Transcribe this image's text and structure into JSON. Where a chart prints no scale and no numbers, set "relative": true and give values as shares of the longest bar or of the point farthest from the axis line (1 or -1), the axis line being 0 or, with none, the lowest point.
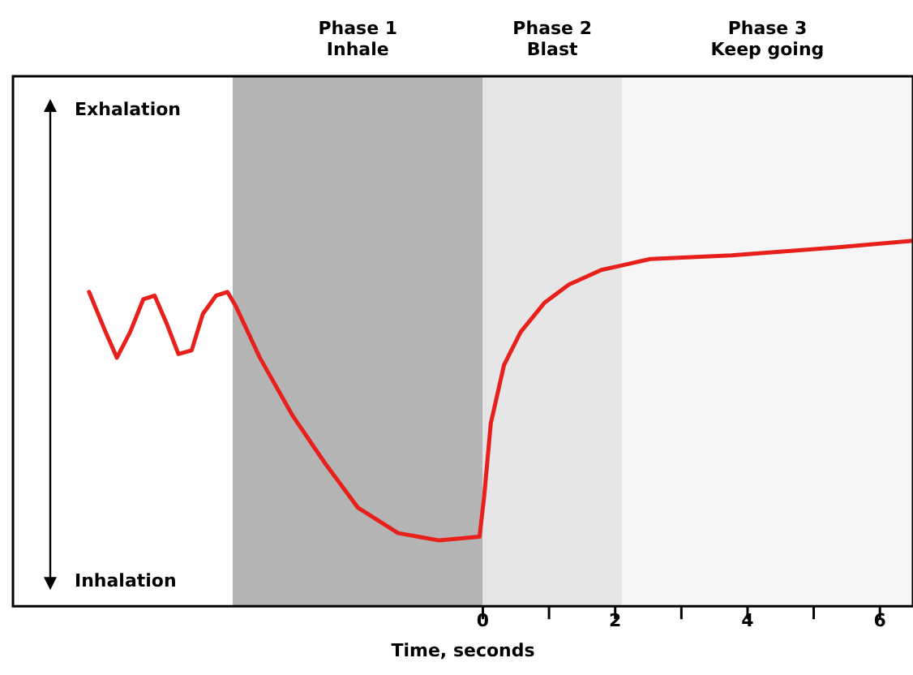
{
  "chart_data": {
    "type": "line",
    "relative": true,
    "xlabel": "Time, seconds",
    "x": [
      -5.95,
      -5.7,
      -5.53,
      -5.33,
      -5.13,
      -4.96,
      -4.77,
      -4.6,
      -4.4,
      -4.23,
      -4.03,
      -3.86,
      -3.73,
      -3.37,
      -2.87,
      -2.38,
      -1.89,
      -1.28,
      -0.66,
      -0.05,
      0.02,
      0.12,
      0.32,
      0.57,
      0.93,
      1.3,
      1.79,
      2.53,
      3.76,
      5.23,
      6.5
    ],
    "series": [
      {
        "color": "#e8201c",
        "values": [
          0.86,
          0.75,
          0.68,
          0.75,
          0.84,
          0.85,
          0.77,
          0.69,
          0.7,
          0.8,
          0.85,
          0.86,
          0.82,
          0.68,
          0.52,
          0.39,
          0.27,
          0.2,
          0.18,
          0.19,
          0.3,
          0.5,
          0.66,
          0.75,
          0.83,
          0.88,
          0.92,
          0.95,
          0.96,
          0.98,
          1.0
        ]
      }
    ],
    "xlim": [
      -7.1,
      6.5
    ],
    "xticks": [
      0,
      {
        "value": 1,
        "label": null
      },
      2,
      {
        "value": 3,
        "label": null
      },
      4,
      {
        "value": 5,
        "label": null
      },
      6
    ],
    "bands": [
      {
        "axis": "x",
        "from": -3.78,
        "to": 0,
        "label": "Phase 1\nInhale",
        "color": "#b4b4b4"
      },
      {
        "axis": "x",
        "from": 0,
        "to": 2.1,
        "label": "Phase 2\nBlast",
        "color": "#e6e6e6"
      },
      {
        "axis": "x",
        "from": 2.1,
        "to": 6.5,
        "label": "Phase 3\nKeep going",
        "color": "#f6f6f6"
      }
    ],
    "annotations": [
      "Exhalation",
      "Inhalation"
    ],
    "grid": false,
    "legend": false,
    "marker": "none",
    "line_style": "solid"
  }
}
